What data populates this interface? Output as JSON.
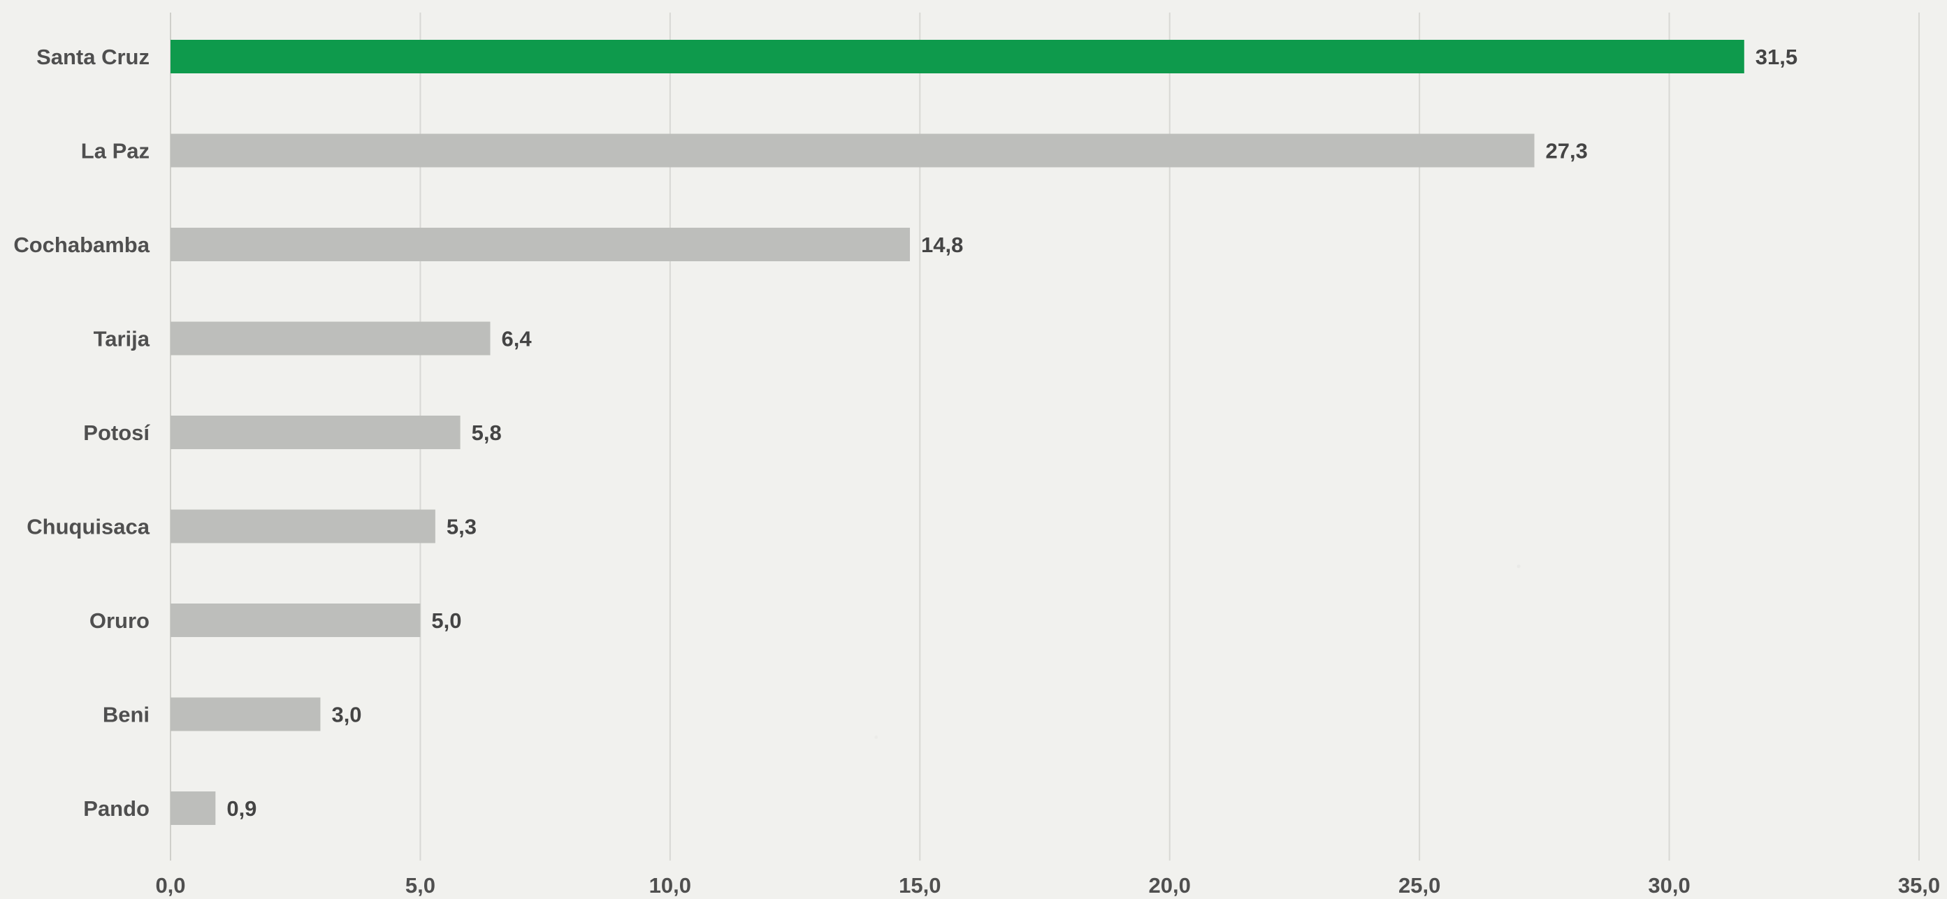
{
  "chart_data": {
    "type": "bar",
    "orientation": "horizontal",
    "categories": [
      "Santa Cruz",
      "La Paz",
      "Cochabamba",
      "Tarija",
      "Potosí",
      "Chuquisaca",
      "Oruro",
      "Beni",
      "Pando"
    ],
    "values": [
      31.5,
      27.3,
      14.8,
      6.4,
      5.8,
      5.3,
      5.0,
      3.0,
      0.9
    ],
    "value_labels": [
      "31,5",
      "27,3",
      "14,8",
      "6,4",
      "5,8",
      "5,3",
      "5,0",
      "3,0",
      "0,9"
    ],
    "x_ticks": [
      "0,0",
      "5,0",
      "10,0",
      "15,0",
      "20,0",
      "25,0",
      "30,0",
      "35,0"
    ],
    "xlim": [
      0,
      35
    ],
    "grid": true,
    "colors": {
      "highlight": "#0e9a4c",
      "bar": "#bdbebb",
      "grid": "#d8d8d4",
      "text": "#4f4f4f",
      "value_text": "#444444"
    },
    "title": "",
    "xlabel": "",
    "ylabel": ""
  }
}
